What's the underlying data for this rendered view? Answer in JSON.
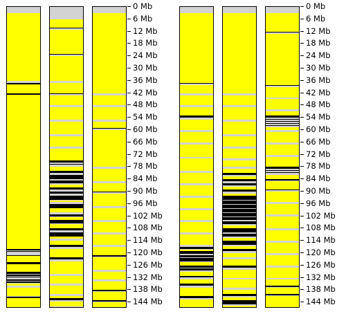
{
  "colors": {
    "base": "#d3d3d3",
    "yellow": "#ffff00",
    "black": "#000000",
    "border": "#000000"
  },
  "scale": {
    "left_ticks": [
      "0 Mb",
      "6 Mb",
      "12 Mb",
      "18 Mb",
      "24 Mb",
      "30 Mb",
      "36 Mb",
      "42 Mb",
      "48 Mb",
      "54 Mb",
      "60 Mb",
      "66 Mb",
      "72 Mb",
      "78 Mb",
      "84 Mb",
      "90 Mb",
      "96 Mb",
      "102 Mb",
      "108 Mb",
      "114 Mb",
      "120 Mb",
      "126 Mb",
      "132 Mb",
      "138 Mb",
      "144 Mb"
    ],
    "right_ticks": [
      "0 Mb",
      "6 Mb",
      "12 Mb",
      "18 Mb",
      "24 Mb",
      "30 Mb",
      "36 Mb",
      "42 Mb",
      "48 Mb",
      "54 Mb",
      "60 Mb",
      "66 Mb",
      "72 Mb",
      "78 Mb",
      "84 Mb",
      "90 Mb",
      "96 Mb",
      "102 Mb",
      "108 Mb",
      "114 Mb",
      "120 Mb",
      "126 Mb",
      "132 Mb",
      "138 Mb",
      "144 Mb"
    ]
  },
  "tracks": [
    {
      "name": "track-1",
      "bands": [
        [
          3,
          16,
          "y"
        ],
        [
          16,
          22,
          "y"
        ],
        [
          22,
          36,
          "y"
        ],
        [
          37,
          60,
          "y"
        ],
        [
          60,
          66,
          "y"
        ],
        [
          66,
          80,
          "y"
        ],
        [
          80,
          90,
          "y"
        ],
        [
          90,
          96,
          "y"
        ],
        [
          96,
          107,
          "y"
        ],
        [
          37,
          37.6,
          "k"
        ],
        [
          107,
          111,
          "y"
        ],
        [
          111,
          116,
          "y"
        ],
        [
          121,
          123,
          "y"
        ],
        [
          123.5,
          129,
          "y"
        ],
        [
          42,
          42.8,
          "k"
        ],
        [
          47,
          52,
          "y"
        ],
        [
          53,
          60,
          "y"
        ],
        [
          61,
          64,
          "y"
        ],
        [
          65,
          73,
          "y"
        ],
        [
          74,
          79,
          "y"
        ],
        [
          80,
          86,
          "y"
        ],
        [
          87,
          95,
          "y"
        ],
        [
          96,
          102,
          "y"
        ],
        [
          103,
          110,
          "y"
        ],
        [
          111,
          118,
          "y"
        ],
        [
          118,
          118.8,
          "k"
        ],
        [
          119,
          119.5,
          "k"
        ],
        [
          121,
          121.5,
          "k"
        ],
        [
          123,
          124,
          "y"
        ],
        [
          124.5,
          125.5,
          "k"
        ],
        [
          126,
          128,
          "y"
        ],
        [
          129,
          130,
          "k"
        ],
        [
          130.5,
          131,
          "k"
        ],
        [
          131.5,
          132,
          "k"
        ],
        [
          133,
          133.5,
          "k"
        ],
        [
          134,
          134.6,
          "k"
        ],
        [
          135,
          136,
          "y"
        ],
        [
          137,
          141,
          "y"
        ],
        [
          141.2,
          141.8,
          "k"
        ],
        [
          142,
          147,
          "y"
        ]
      ]
    },
    {
      "name": "track-2",
      "bands": [
        [
          6,
          10,
          "y"
        ],
        [
          10,
          10.6,
          "k"
        ],
        [
          11,
          15,
          "y"
        ],
        [
          15,
          19,
          "y"
        ],
        [
          19,
          23,
          "y"
        ],
        [
          23,
          23.4,
          "k"
        ],
        [
          24,
          30,
          "y"
        ],
        [
          30,
          36,
          "y"
        ],
        [
          37,
          42,
          "y"
        ],
        [
          42,
          42.5,
          "k"
        ],
        [
          43,
          48,
          "y"
        ],
        [
          49,
          55,
          "y"
        ],
        [
          56,
          62,
          "y"
        ],
        [
          63,
          68,
          "y"
        ],
        [
          69,
          75,
          "y"
        ],
        [
          75,
          76,
          "k"
        ],
        [
          76.5,
          77,
          "k"
        ],
        [
          78,
          80,
          "y"
        ],
        [
          80,
          81,
          "k"
        ],
        [
          82,
          84,
          "k"
        ],
        [
          84.5,
          86,
          "k"
        ],
        [
          86.5,
          88,
          "y"
        ],
        [
          88,
          89,
          "k"
        ],
        [
          90,
          91,
          "k"
        ],
        [
          92,
          94,
          "k"
        ],
        [
          94.5,
          95,
          "y"
        ],
        [
          96,
          98,
          "k"
        ],
        [
          98,
          100,
          "y"
        ],
        [
          101,
          102,
          "k"
        ],
        [
          102.5,
          104,
          "y"
        ],
        [
          104,
          105.5,
          "k"
        ],
        [
          106,
          108,
          "y"
        ],
        [
          108,
          109,
          "k"
        ],
        [
          110,
          112,
          "k"
        ],
        [
          112,
          113,
          "y"
        ],
        [
          114,
          116,
          "y"
        ],
        [
          116,
          117,
          "k"
        ],
        [
          118,
          122,
          "y"
        ],
        [
          122,
          123,
          "k"
        ],
        [
          124,
          130,
          "y"
        ],
        [
          131,
          135,
          "y"
        ],
        [
          136,
          140,
          "y"
        ],
        [
          141,
          142,
          "y"
        ],
        [
          142,
          143,
          "k"
        ],
        [
          143.5,
          146,
          "y"
        ]
      ]
    },
    {
      "name": "track-3",
      "bands": [
        [
          3,
          10,
          "y"
        ],
        [
          10,
          18,
          "y"
        ],
        [
          18,
          24,
          "y"
        ],
        [
          24,
          30,
          "y"
        ],
        [
          30,
          36,
          "y"
        ],
        [
          36,
          42,
          "y"
        ],
        [
          43,
          48,
          "y"
        ],
        [
          49,
          55,
          "y"
        ],
        [
          56,
          59,
          "y"
        ],
        [
          59,
          59.4,
          "k"
        ],
        [
          60,
          66,
          "y"
        ],
        [
          66,
          72,
          "y"
        ],
        [
          72,
          78,
          "y"
        ],
        [
          79,
          85,
          "y"
        ],
        [
          86,
          90,
          "y"
        ],
        [
          90,
          90.4,
          "k"
        ],
        [
          91,
          97,
          "y"
        ],
        [
          98,
          104,
          "y"
        ],
        [
          105,
          110,
          "y"
        ],
        [
          111,
          116,
          "y"
        ],
        [
          117,
          121,
          "y"
        ],
        [
          121,
          121.6,
          "k"
        ],
        [
          122,
          128,
          "y"
        ],
        [
          129,
          133,
          "y"
        ],
        [
          134,
          138,
          "y"
        ],
        [
          138,
          138.6,
          "k"
        ],
        [
          139,
          143,
          "y"
        ],
        [
          143,
          143.5,
          "k"
        ],
        [
          144,
          147,
          "y"
        ]
      ]
    },
    {
      "name": "track-4",
      "bands": [
        [
          3,
          10,
          "y"
        ],
        [
          10,
          18,
          "y"
        ],
        [
          18,
          24,
          "y"
        ],
        [
          24,
          30,
          "y"
        ],
        [
          30,
          37,
          "y"
        ],
        [
          37,
          37.5,
          "k"
        ],
        [
          38,
          42,
          "y"
        ],
        [
          43,
          48,
          "y"
        ],
        [
          49,
          53,
          "y"
        ],
        [
          53,
          54,
          "k"
        ],
        [
          55,
          60,
          "y"
        ],
        [
          61,
          66,
          "y"
        ],
        [
          67,
          73,
          "y"
        ],
        [
          74,
          80,
          "y"
        ],
        [
          81,
          86,
          "y"
        ],
        [
          87,
          92,
          "y"
        ],
        [
          93,
          98,
          "y"
        ],
        [
          99,
          104,
          "y"
        ],
        [
          105,
          110,
          "y"
        ],
        [
          111,
          116,
          "y"
        ],
        [
          117,
          118,
          "k"
        ],
        [
          118.5,
          119,
          "y"
        ],
        [
          119,
          120.5,
          "k"
        ],
        [
          121,
          122,
          "k"
        ],
        [
          122.5,
          124,
          "k"
        ],
        [
          124.5,
          126,
          "y"
        ],
        [
          126,
          127,
          "k"
        ],
        [
          127.5,
          128.5,
          "k"
        ],
        [
          129,
          131,
          "y"
        ],
        [
          131,
          132,
          "k"
        ],
        [
          133,
          135,
          "y"
        ],
        [
          135,
          136,
          "k"
        ],
        [
          137,
          141,
          "y"
        ],
        [
          141,
          142,
          "k"
        ],
        [
          142.5,
          147,
          "y"
        ]
      ]
    },
    {
      "name": "track-5",
      "bands": [
        [
          3,
          10,
          "y"
        ],
        [
          10,
          18,
          "y"
        ],
        [
          18,
          24,
          "y"
        ],
        [
          24,
          30,
          "y"
        ],
        [
          30,
          36,
          "y"
        ],
        [
          36,
          42,
          "y"
        ],
        [
          43,
          48,
          "y"
        ],
        [
          49,
          55,
          "y"
        ],
        [
          56,
          62,
          "y"
        ],
        [
          63,
          68,
          "y"
        ],
        [
          69,
          74,
          "y"
        ],
        [
          75,
          78,
          "y"
        ],
        [
          79,
          81,
          "y"
        ],
        [
          81,
          82,
          "k"
        ],
        [
          82.5,
          84,
          "y"
        ],
        [
          84,
          85,
          "k"
        ],
        [
          86,
          87,
          "k"
        ],
        [
          87.5,
          89,
          "y"
        ],
        [
          89,
          90,
          "k"
        ],
        [
          91,
          92,
          "y"
        ],
        [
          92,
          94,
          "k"
        ],
        [
          94.5,
          96,
          "k"
        ],
        [
          96.5,
          98,
          "k"
        ],
        [
          98.5,
          100,
          "k"
        ],
        [
          100.5,
          102,
          "k"
        ],
        [
          102.5,
          104,
          "k"
        ],
        [
          104.5,
          106,
          "k"
        ],
        [
          106.5,
          108,
          "y"
        ],
        [
          108,
          110,
          "k"
        ],
        [
          110.5,
          112,
          "k"
        ],
        [
          112.5,
          114,
          "y"
        ],
        [
          114,
          116,
          "k"
        ],
        [
          116.5,
          118,
          "y"
        ],
        [
          118,
          119,
          "k"
        ],
        [
          120,
          122,
          "y"
        ],
        [
          123,
          126,
          "y"
        ],
        [
          126,
          127,
          "k"
        ],
        [
          128,
          132,
          "y"
        ],
        [
          133,
          137,
          "y"
        ],
        [
          138,
          140,
          "y"
        ],
        [
          140,
          141,
          "k"
        ],
        [
          141.5,
          143,
          "y"
        ],
        [
          143,
          145,
          "k"
        ],
        [
          145.5,
          147,
          "y"
        ]
      ]
    },
    {
      "name": "track-6",
      "bands": [
        [
          3,
          8,
          "y"
        ],
        [
          8,
          12,
          "y"
        ],
        [
          12,
          12.4,
          "k"
        ],
        [
          13,
          18,
          "y"
        ],
        [
          18,
          24,
          "y"
        ],
        [
          24,
          30,
          "y"
        ],
        [
          30,
          36,
          "y"
        ],
        [
          36,
          38,
          "y"
        ],
        [
          38,
          38.4,
          "k"
        ],
        [
          39,
          44,
          "y"
        ],
        [
          45,
          50,
          "y"
        ],
        [
          51,
          53,
          "y"
        ],
        [
          53,
          54,
          "k"
        ],
        [
          54.5,
          55,
          "k"
        ],
        [
          55.5,
          56,
          "k"
        ],
        [
          56.5,
          57,
          "k"
        ],
        [
          57.5,
          58,
          "k"
        ],
        [
          58.5,
          60,
          "y"
        ],
        [
          61,
          66,
          "y"
        ],
        [
          67,
          72,
          "y"
        ],
        [
          73,
          78,
          "y"
        ],
        [
          78,
          79,
          "k"
        ],
        [
          79.5,
          80,
          "k"
        ],
        [
          80.5,
          81,
          "k"
        ],
        [
          82,
          84,
          "y"
        ],
        [
          84,
          84.5,
          "k"
        ],
        [
          85,
          89,
          "y"
        ],
        [
          89,
          89.5,
          "k"
        ],
        [
          90,
          95,
          "y"
        ],
        [
          96,
          101,
          "y"
        ],
        [
          102,
          108,
          "y"
        ],
        [
          109,
          114,
          "y"
        ],
        [
          115,
          120,
          "y"
        ],
        [
          121,
          126,
          "y"
        ],
        [
          127,
          132,
          "y"
        ],
        [
          133,
          136,
          "y"
        ],
        [
          136,
          136.5,
          "k"
        ],
        [
          137,
          140,
          "y"
        ],
        [
          140,
          140.5,
          "k"
        ],
        [
          141,
          147,
          "y"
        ]
      ]
    }
  ]
}
